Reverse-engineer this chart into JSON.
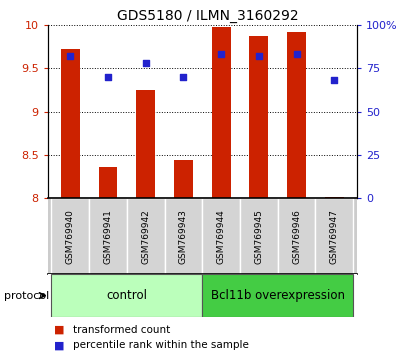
{
  "title": "GDS5180 / ILMN_3160292",
  "samples": [
    "GSM769940",
    "GSM769941",
    "GSM769942",
    "GSM769943",
    "GSM769944",
    "GSM769945",
    "GSM769946",
    "GSM769947"
  ],
  "transformed_counts": [
    9.72,
    8.36,
    9.25,
    8.44,
    9.97,
    9.87,
    9.92,
    8.02
  ],
  "percentile_ranks": [
    82,
    70,
    78,
    70,
    83,
    82,
    83,
    68
  ],
  "ylim_left": [
    8.0,
    10.0
  ],
  "ylim_right": [
    0,
    100
  ],
  "yticks_left": [
    8.0,
    8.5,
    9.0,
    9.5,
    10.0
  ],
  "yticks_right": [
    0,
    25,
    50,
    75,
    100
  ],
  "yticklabels_left": [
    "8",
    "8.5",
    "9",
    "9.5",
    "10"
  ],
  "yticklabels_right": [
    "0",
    "25",
    "50",
    "75",
    "100%"
  ],
  "bar_color": "#cc2200",
  "dot_color": "#2222cc",
  "control_color": "#bbffbb",
  "overexpression_color": "#44cc44",
  "control_label": "control",
  "overexpression_label": "Bcl11b overexpression",
  "protocol_label": "protocol",
  "legend_bar_label": "transformed count",
  "legend_dot_label": "percentile rank within the sample",
  "n_control": 4,
  "bar_bottom": 8.0,
  "bar_width": 0.5
}
